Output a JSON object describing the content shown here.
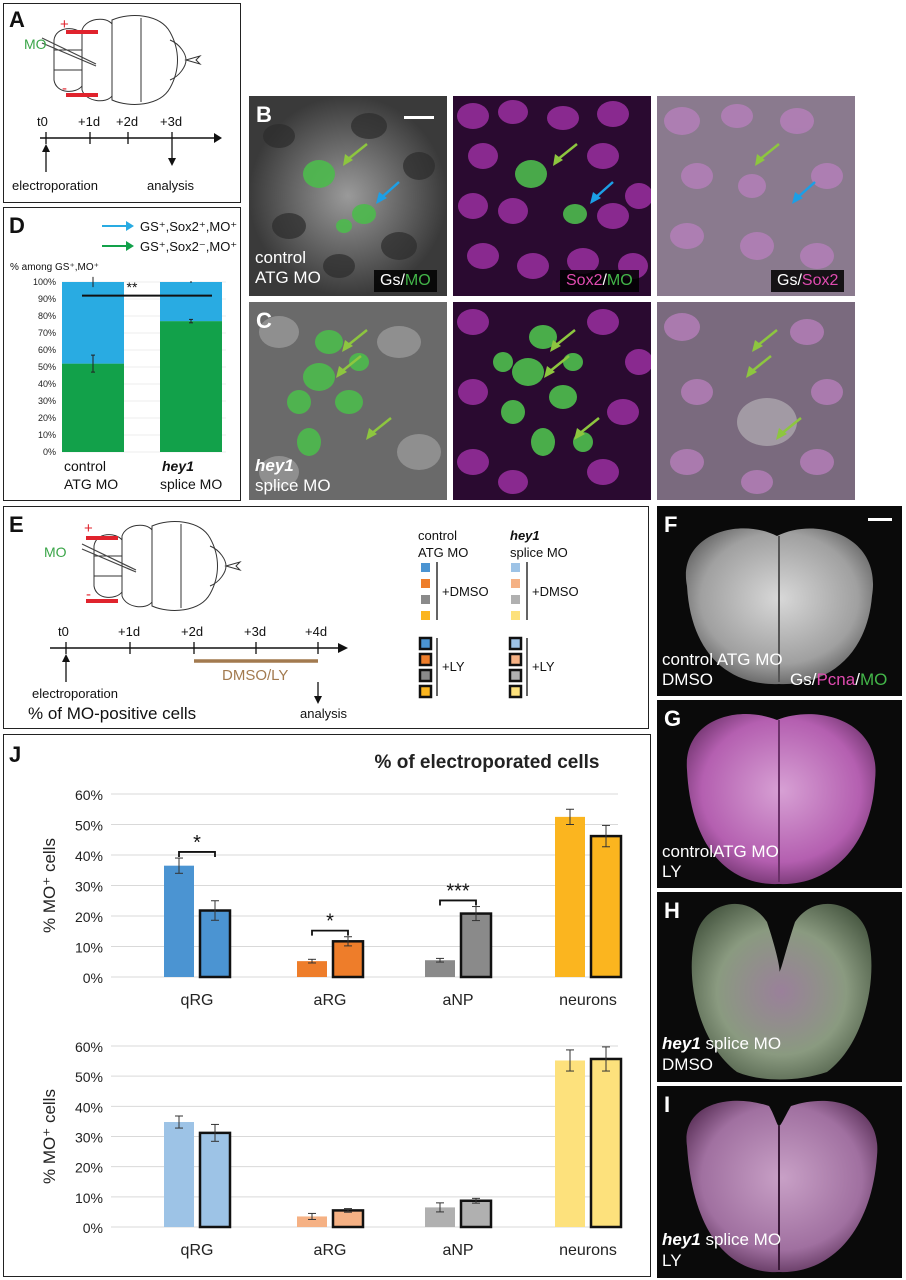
{
  "panel_labels": {
    "A": "A",
    "B": "B",
    "C": "C",
    "D": "D",
    "E": "E",
    "F": "F",
    "G": "G",
    "H": "H",
    "I": "I",
    "J": "J"
  },
  "panel_a": {
    "mo": "MO",
    "plus": "+",
    "minus": "-",
    "timeline": [
      "t0",
      "+1d",
      "+2d",
      "+3d"
    ],
    "electroporation": "electroporation",
    "analysis": "analysis"
  },
  "panel_d": {
    "legend": [
      "GS⁺,Sox2⁺,MO⁺",
      "GS⁺,Sox2⁻,MO⁺"
    ],
    "legend_colors": [
      "#29abe2",
      "#12a14a"
    ],
    "ylabel": "% among GS⁺,MO⁺",
    "ticks": [
      "100%",
      "90%",
      "80%",
      "70%",
      "60%",
      "50%",
      "40%",
      "30%",
      "20%",
      "10%",
      "0%"
    ],
    "sig": "**",
    "cat1_line1": "control",
    "cat1_line2": "ATG MO",
    "cat2_line1": "hey1",
    "cat2_line2": "splice MO"
  },
  "micro_labels": {
    "b_cond1": "control",
    "b_cond2": "ATG MO",
    "c_cond1": "hey1",
    "c_cond2": "splice MO",
    "gs": "Gs",
    "slash": "/",
    "mo": "MO",
    "sox2": "Sox2"
  },
  "panel_e": {
    "mo": "MO",
    "plus": "+",
    "minus": "-",
    "timeline": [
      "t0",
      "+1d",
      "+2d",
      "+3d",
      "+4d"
    ],
    "treatment": "DMSO/LY",
    "electroporation": "electroporation",
    "analysis": "analysis",
    "subtitle": "% of MO-positive cells",
    "legend_ctrl1": "control",
    "legend_ctrl2": "ATG MO",
    "legend_hey1": "hey1",
    "legend_hey2": "splice MO",
    "dmso": "+DMSO",
    "ly": "+LY"
  },
  "whole_mounts": {
    "f1": "control ATG MO",
    "f2": "DMSO",
    "g1": "controlATG MO",
    "g2": "LY",
    "h1a": "hey1",
    "h1b": " splice MO",
    "h2": "DMSO",
    "i1a": "hey1",
    "i1b": " splice MO",
    "i2": "LY",
    "chan_gs": "Gs",
    "chan_slash": "/",
    "chan_pcna": "Pcna",
    "chan_mo": "MO"
  },
  "colors": {
    "qRG": "#4b94d2",
    "aRG": "#ee7d2a",
    "aNP": "#8a8a8a",
    "neurons": "#fbb51f",
    "qRG_light": "#9dc3e6",
    "aRG_light": "#f5b184",
    "aNP_light": "#b0b0b0",
    "neurons_light": "#fde17c",
    "mo_green": "#43b649",
    "magenta": "#d63a9f",
    "arrow_green": "#8dc63f",
    "arrow_blue": "#1c9fe6"
  },
  "chart_data": [
    {
      "type": "bar",
      "panel": "D",
      "categories": [
        "control ATG MO",
        "hey1 splice MO"
      ],
      "stacked": true,
      "series": [
        {
          "name": "GS⁺,Sox2⁻,MO⁺",
          "values": [
            52,
            77
          ]
        },
        {
          "name": "GS⁺,Sox2⁺,MO⁺",
          "values": [
            48,
            23
          ]
        }
      ],
      "errors": [
        5,
        1
      ],
      "ylabel": "% among GS⁺,MO⁺",
      "ylim": [
        0,
        100
      ],
      "significance": "**"
    },
    {
      "type": "bar",
      "panel": "J",
      "title": "% of electroporated cells",
      "ylabel": "% MO⁺ cells",
      "ylim": [
        0,
        60
      ],
      "yticks": [
        "0%",
        "10%",
        "20%",
        "30%",
        "40%",
        "50%",
        "60%"
      ],
      "categories": [
        "qRG",
        "aRG",
        "aNP",
        "neurons"
      ],
      "series": [
        {
          "values": [
            36.5,
            5.2,
            5.5,
            52.5
          ],
          "errors": [
            2.5,
            0.6,
            0.6,
            2.5
          ]
        },
        {
          "values": [
            21.8,
            11.7,
            20.8,
            46.2
          ],
          "errors": [
            3.2,
            1.5,
            2.3,
            3.5
          ]
        }
      ],
      "significance": [
        "*",
        "*",
        "***",
        ""
      ]
    },
    {
      "type": "bar",
      "panel": "J",
      "ylabel": "% MO⁺ cells",
      "ylim": [
        0,
        60
      ],
      "yticks": [
        "0%",
        "10%",
        "20%",
        "30%",
        "40%",
        "50%",
        "60%"
      ],
      "categories": [
        "qRG",
        "aRG",
        "aNP",
        "neurons"
      ],
      "series": [
        {
          "values": [
            34.8,
            3.5,
            6.5,
            55.2
          ],
          "errors": [
            2.0,
            1.0,
            1.5,
            3.5
          ]
        },
        {
          "values": [
            31.2,
            5.5,
            8.7,
            55.7
          ],
          "errors": [
            2.8,
            0.6,
            0.8,
            4.0
          ]
        }
      ]
    }
  ]
}
